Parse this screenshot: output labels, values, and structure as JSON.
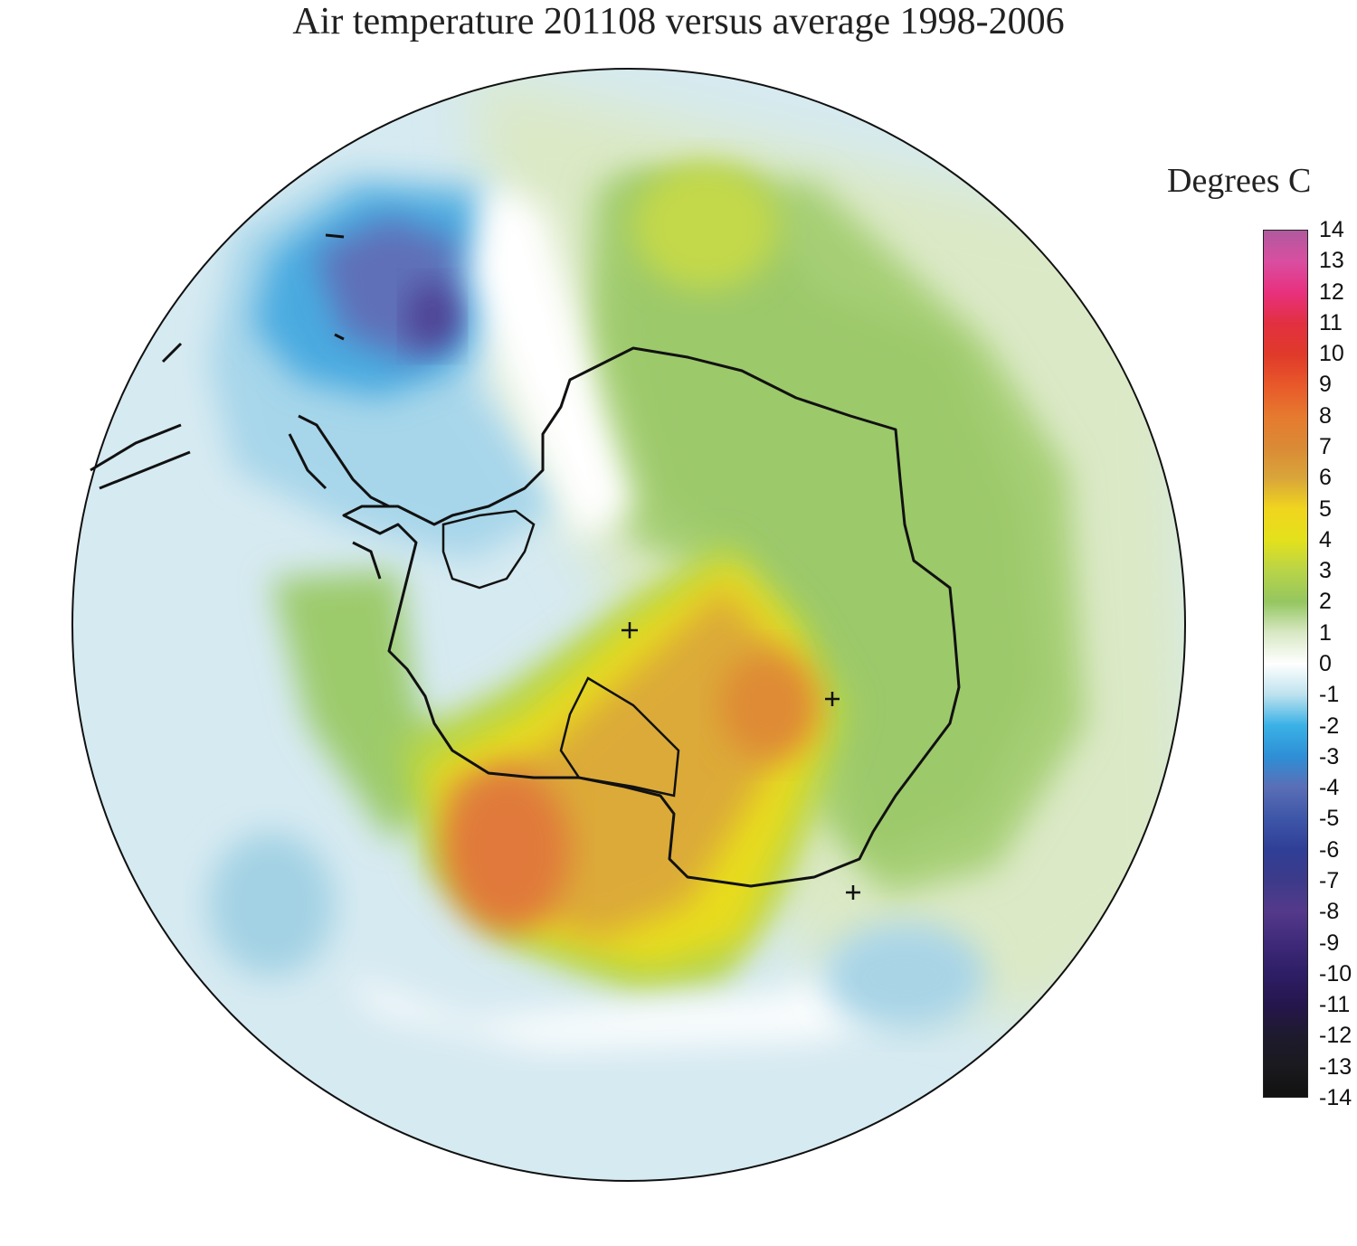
{
  "title": "Air temperature 201108 versus average 1998-2006",
  "legend": {
    "title": "Degrees C",
    "ticks": [
      "14",
      "13",
      "12",
      "11",
      "10",
      "9",
      "8",
      "7",
      "6",
      "5",
      "4",
      "3",
      "2",
      "1",
      "0",
      "-1",
      "-2",
      "-3",
      "-4",
      "-5",
      "-6",
      "-7",
      "-8",
      "-9",
      "-10",
      "-11",
      "-12",
      "-13",
      "-14"
    ],
    "stops": [
      {
        "value": 14,
        "color": "#b05a9e"
      },
      {
        "value": 13,
        "color": "#d94ea0"
      },
      {
        "value": 12,
        "color": "#e8307e"
      },
      {
        "value": 11,
        "color": "#e23040"
      },
      {
        "value": 10,
        "color": "#e03a2a"
      },
      {
        "value": 9,
        "color": "#e8582a"
      },
      {
        "value": 8,
        "color": "#e67a2e"
      },
      {
        "value": 7,
        "color": "#da8a35"
      },
      {
        "value": 6,
        "color": "#d9a53a"
      },
      {
        "value": 5,
        "color": "#f0d51e"
      },
      {
        "value": 4,
        "color": "#e4e11c"
      },
      {
        "value": 3,
        "color": "#b8d447"
      },
      {
        "value": 2,
        "color": "#95c660"
      },
      {
        "value": 1,
        "color": "#d8e8c4"
      },
      {
        "value": 0,
        "color": "#ffffff"
      },
      {
        "value": -1,
        "color": "#bde2ee"
      },
      {
        "value": -2,
        "color": "#3ab1e6"
      },
      {
        "value": -3,
        "color": "#2e8fd6"
      },
      {
        "value": -4,
        "color": "#5a6eb6"
      },
      {
        "value": -5,
        "color": "#3e56a8"
      },
      {
        "value": -6,
        "color": "#2f3f96"
      },
      {
        "value": -7,
        "color": "#3d3a8a"
      },
      {
        "value": -8,
        "color": "#55398a"
      },
      {
        "value": -9,
        "color": "#3f2a7a"
      },
      {
        "value": -10,
        "color": "#2e1e66"
      },
      {
        "value": -11,
        "color": "#26164e"
      },
      {
        "value": -12,
        "color": "#1e1a2e"
      },
      {
        "value": -13,
        "color": "#1a1a1f"
      },
      {
        "value": -14,
        "color": "#111111"
      }
    ]
  }
}
